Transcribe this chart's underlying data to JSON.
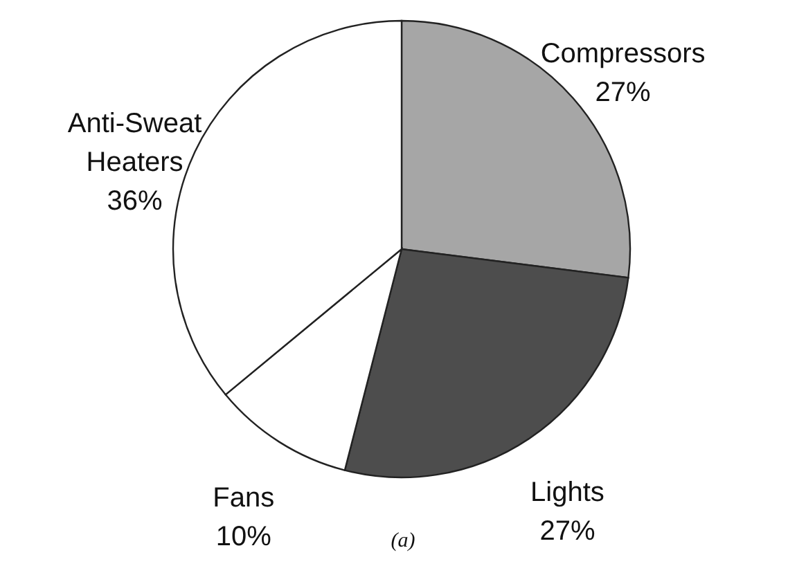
{
  "chart_data": {
    "type": "pie",
    "categories": [
      "Compressors",
      "Lights",
      "Fans",
      "Anti-Sweat Heaters"
    ],
    "values": [
      27,
      27,
      10,
      36
    ],
    "colors": [
      "#a6a6a6",
      "#4d4d4d",
      "#ffffff",
      "#ffffff"
    ],
    "value_labels": [
      "27%",
      "27%",
      "10%",
      "36%"
    ],
    "annotations": [
      "(a)"
    ]
  }
}
